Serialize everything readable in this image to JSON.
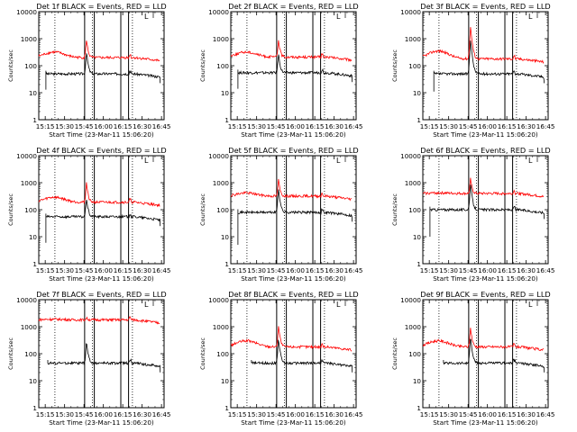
{
  "shared": {
    "xlabel": "Start Time (23-Mar-11 15:06:20)",
    "ylabel": "Counts/sec",
    "x_ticks": [
      "15:15",
      "15:30",
      "15:45",
      "16:00",
      "16:15",
      "16:30",
      "16:45"
    ],
    "y_ticks": [
      "1",
      "10",
      "100",
      "1000",
      "10000"
    ],
    "ylim": [
      1,
      10000
    ],
    "y_scale": "log",
    "x_range_minutes_after_1500": [
      10,
      107
    ],
    "dotted_lines_minutes": [
      22.5,
      51.5,
      82.5
    ],
    "solid_lines_minutes": [
      45.5,
      53,
      73.5,
      79.5
    ],
    "series_colors": {
      "events": "#000000",
      "lld": "#ff0000"
    },
    "corner_mark": "L"
  },
  "chart_data": [
    {
      "type": "line",
      "title": "Det 1f BLACK = Events, RED = LLD",
      "series": [
        {
          "color": "#000000",
          "start": 15.5,
          "end": 104,
          "base": 50,
          "peak": 350,
          "jump_from": 13
        },
        {
          "color": "#ff0000",
          "start": 10,
          "end": 104,
          "base": 200,
          "peak": 1000,
          "hump": 320
        }
      ]
    },
    {
      "type": "line",
      "title": "Det 2f BLACK = Events, RED = LLD",
      "series": [
        {
          "color": "#000000",
          "start": 15.5,
          "end": 104,
          "base": 55,
          "peak": 300,
          "jump_from": 14
        },
        {
          "color": "#ff0000",
          "start": 10,
          "end": 104,
          "base": 210,
          "peak": 1000,
          "hump": 320
        }
      ]
    },
    {
      "type": "line",
      "title": "Det 3f BLACK = Events, RED = LLD",
      "series": [
        {
          "color": "#000000",
          "start": 18.5,
          "end": 104,
          "base": 50,
          "peak": 1000,
          "jump_from": 11
        },
        {
          "color": "#ff0000",
          "start": 10,
          "end": 104,
          "base": 180,
          "peak": 3000,
          "hump": 350
        }
      ]
    },
    {
      "type": "line",
      "title": "Det 4f BLACK = Events, RED = LLD",
      "series": [
        {
          "color": "#000000",
          "start": 15.5,
          "end": 104,
          "base": 55,
          "peak": 300,
          "jump_from": 6
        },
        {
          "color": "#ff0000",
          "start": 10,
          "end": 104,
          "base": 190,
          "peak": 1100,
          "hump": 290
        }
      ]
    },
    {
      "type": "line",
      "title": "Det 5f BLACK = Events, RED = LLD",
      "series": [
        {
          "color": "#000000",
          "start": 15.5,
          "end": 104,
          "base": 80,
          "peak": 700,
          "jump_from": 5
        },
        {
          "color": "#ff0000",
          "start": 10,
          "end": 104,
          "base": 320,
          "peak": 1400,
          "hump": 420
        }
      ]
    },
    {
      "type": "line",
      "title": "Det 6f BLACK = Events, RED = LLD",
      "series": [
        {
          "color": "#000000",
          "start": 15.5,
          "end": 104,
          "base": 100,
          "peak": 1000,
          "jump_from": 10
        },
        {
          "color": "#ff0000",
          "start": 10,
          "end": 104,
          "base": 400,
          "peak": 1500,
          "hump": 420
        }
      ]
    },
    {
      "type": "line",
      "title": "Det 7f BLACK = Events, RED = LLD",
      "series": [
        {
          "color": "#000000",
          "start": 17,
          "end": 104,
          "base": 45,
          "peak": 300,
          "jump_from": 45
        },
        {
          "color": "#ff0000",
          "start": 10,
          "end": 104,
          "base": 1800,
          "peak": 2200,
          "hump": 1900
        }
      ]
    },
    {
      "type": "line",
      "title": "Det 8f BLACK = Events, RED = LLD",
      "series": [
        {
          "color": "#000000",
          "start": 26,
          "end": 104,
          "base": 45,
          "peak": 400,
          "jump_from": 45
        },
        {
          "color": "#ff0000",
          "start": 10,
          "end": 104,
          "base": 180,
          "peak": 1200,
          "hump": 300
        }
      ]
    },
    {
      "type": "line",
      "title": "Det 9f BLACK = Events, RED = LLD",
      "series": [
        {
          "color": "#000000",
          "start": 26,
          "end": 104,
          "base": 45,
          "peak": 450,
          "jump_from": 45
        },
        {
          "color": "#ff0000",
          "start": 10,
          "end": 104,
          "base": 180,
          "peak": 1000,
          "hump": 300
        }
      ]
    }
  ]
}
